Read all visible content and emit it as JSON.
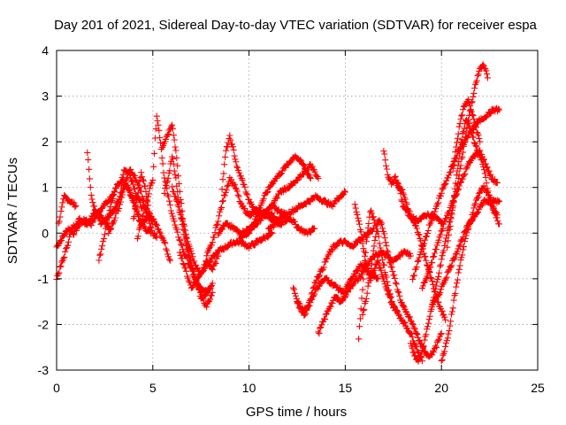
{
  "chart_data": {
    "type": "scatter",
    "title": "Day 201 of 2021, Sidereal Day-to-day VTEC variation (SDTVAR) for receiver espa",
    "xlabel": "GPS time / hours",
    "ylabel": "SDTVAR / TECUs",
    "xlim": [
      0,
      25
    ],
    "ylim": [
      -3,
      4
    ],
    "x_ticks": [
      "0",
      "5",
      "10",
      "15",
      "20",
      "25"
    ],
    "y_ticks": [
      "-3",
      "-2",
      "-1",
      "0",
      "1",
      "2",
      "3",
      "4"
    ],
    "x_tick_values": [
      0,
      5,
      10,
      15,
      20,
      25
    ],
    "y_tick_values": [
      -3,
      -2,
      -1,
      0,
      1,
      2,
      3,
      4
    ],
    "grid": true,
    "marker": "plus",
    "color": "#ff0000",
    "series": [
      {
        "x": [
          0.0,
          0.3,
          0.6,
          0.9,
          1.2,
          1.5,
          1.8,
          2.1,
          2.4,
          2.7,
          3.0
        ],
        "y": [
          -0.3,
          -0.1,
          0.1,
          0.0,
          0.2,
          0.3,
          0.2,
          0.4,
          0.6,
          0.7,
          0.9
        ]
      },
      {
        "x": [
          0.1,
          0.4,
          0.7,
          1.0
        ],
        "y": [
          0.2,
          0.8,
          0.7,
          0.6
        ]
      },
      {
        "x": [
          0.0,
          0.4,
          0.8,
          1.2,
          1.6,
          2.0,
          2.4,
          2.8
        ],
        "y": [
          -1.0,
          -0.5,
          0.1,
          0.3,
          0.2,
          0.5,
          0.3,
          0.1
        ]
      },
      {
        "x": [
          1.6,
          1.8,
          2.0,
          2.3,
          2.6,
          3.0,
          3.3,
          3.6,
          4.0,
          4.4,
          4.8,
          5.0
        ],
        "y": [
          1.8,
          0.8,
          0.5,
          0.2,
          0.3,
          0.5,
          0.8,
          1.1,
          0.7,
          0.2,
          0.4,
          0.3
        ]
      },
      {
        "x": [
          2.2,
          2.5,
          2.8,
          3.1,
          3.4,
          3.7,
          4.0,
          4.3,
          4.6,
          4.9
        ],
        "y": [
          -0.6,
          0.0,
          0.6,
          1.0,
          1.2,
          1.0,
          0.7,
          0.3,
          0.1,
          0.0
        ]
      },
      {
        "x": [
          2.7,
          3.0,
          3.3,
          3.5,
          3.8,
          4.1,
          4.4,
          4.7,
          5.0,
          5.3,
          5.6,
          5.9
        ],
        "y": [
          0.0,
          0.3,
          0.8,
          1.4,
          1.3,
          0.9,
          0.6,
          0.5,
          0.3,
          0.1,
          -0.2,
          -0.6
        ]
      },
      {
        "x": [
          3.2,
          3.5,
          3.8,
          4.1,
          4.4,
          4.7,
          5.0,
          5.2
        ],
        "y": [
          0.5,
          1.0,
          1.4,
          1.2,
          0.9,
          0.4,
          0.0,
          -0.1
        ]
      },
      {
        "x": [
          4.0,
          4.2,
          4.4,
          4.6,
          4.8,
          5.0
        ],
        "y": [
          0.3,
          0.8,
          1.3,
          1.0,
          0.5,
          0.2
        ]
      },
      {
        "x": [
          4.2,
          4.5,
          4.8,
          5.0,
          5.2,
          5.4,
          5.6,
          5.9,
          6.2,
          6.6,
          7.0,
          7.4,
          7.8,
          8.1
        ],
        "y": [
          -0.1,
          0.4,
          0.9,
          1.2,
          2.6,
          2.0,
          1.2,
          0.6,
          0.1,
          -0.4,
          -0.8,
          -1.2,
          -1.3,
          -1.1
        ]
      },
      {
        "x": [
          5.5,
          5.8,
          6.0,
          6.2,
          6.4,
          6.6,
          6.9,
          7.2,
          7.5,
          7.8,
          8.1
        ],
        "y": [
          1.9,
          2.2,
          2.4,
          1.8,
          0.9,
          0.2,
          -0.5,
          -1.0,
          -1.4,
          -1.6,
          -1.3
        ]
      },
      {
        "x": [
          5.6,
          5.8,
          6.0,
          6.2,
          6.4,
          6.7,
          7.0,
          7.3,
          7.6,
          8.0
        ],
        "y": [
          0.9,
          1.2,
          1.7,
          1.2,
          0.5,
          -0.2,
          -0.7,
          -1.1,
          -1.4,
          -1.2
        ]
      },
      {
        "x": [
          6.0,
          6.3,
          6.6,
          6.9,
          7.2,
          7.5,
          7.8,
          8.1,
          8.4
        ],
        "y": [
          1.0,
          0.6,
          0.2,
          -0.3,
          -0.7,
          -0.9,
          -0.6,
          -0.8,
          -0.5
        ]
      },
      {
        "x": [
          6.4,
          6.7,
          7.0,
          7.3,
          7.6,
          8.0,
          8.4,
          8.8,
          9.2,
          9.6,
          10.0,
          10.4,
          10.8,
          11.2
        ],
        "y": [
          -0.4,
          -0.8,
          -1.2,
          -1.0,
          -0.8,
          -0.6,
          -0.4,
          -0.3,
          -0.2,
          -0.2,
          -0.3,
          -0.2,
          -0.1,
          0.0
        ]
      },
      {
        "x": [
          7.8,
          8.1,
          8.4,
          8.7,
          9.0,
          9.3,
          9.6,
          10.0,
          10.4,
          10.8,
          11.2,
          11.6,
          12.0
        ],
        "y": [
          -0.5,
          -0.2,
          0.3,
          0.8,
          1.2,
          1.0,
          0.6,
          0.4,
          0.5,
          0.4,
          0.3,
          0.2,
          0.3
        ]
      },
      {
        "x": [
          8.6,
          8.8,
          9.0,
          9.2,
          9.4,
          9.7,
          10.0,
          10.3,
          10.6,
          10.9,
          11.2,
          11.5
        ],
        "y": [
          1.0,
          1.8,
          2.1,
          1.8,
          1.4,
          1.1,
          0.7,
          0.5,
          0.4,
          0.5,
          0.4,
          0.3
        ]
      },
      {
        "x": [
          8.4,
          8.8,
          9.2,
          9.6,
          10.0,
          10.4,
          10.8,
          11.2,
          11.6,
          12.0,
          12.4,
          12.8,
          13.2,
          13.6
        ],
        "y": [
          0.0,
          0.2,
          0.1,
          0.0,
          0.1,
          0.2,
          0.4,
          0.6,
          0.9,
          1.0,
          1.1,
          1.3,
          1.5,
          1.2
        ]
      },
      {
        "x": [
          9.5,
          9.9,
          10.3,
          10.7,
          11.1,
          11.5,
          11.9,
          12.3,
          12.7,
          13.1,
          13.5,
          13.9,
          14.3,
          14.7,
          15.0
        ],
        "y": [
          -0.1,
          0.0,
          0.2,
          0.4,
          0.6,
          0.5,
          0.4,
          0.5,
          0.6,
          0.7,
          0.8,
          0.7,
          0.6,
          0.8,
          0.9
        ]
      },
      {
        "x": [
          10.0,
          10.4,
          10.8,
          11.2,
          11.6,
          12.0,
          12.4,
          12.8,
          13.2
        ],
        "y": [
          0.0,
          0.4,
          0.8,
          1.1,
          1.3,
          1.5,
          1.7,
          1.5,
          1.2
        ]
      },
      {
        "x": [
          11.0,
          11.4,
          11.8,
          12.2,
          12.6,
          13.0,
          13.4
        ],
        "y": [
          0.1,
          0.2,
          0.4,
          0.3,
          0.1,
          0.0,
          0.1
        ]
      },
      {
        "x": [
          12.3,
          12.6,
          12.9,
          13.2,
          13.5,
          13.8,
          14.1,
          14.4,
          14.7,
          15.0,
          15.3,
          15.6,
          15.9,
          16.2,
          16.5
        ],
        "y": [
          -1.2,
          -1.6,
          -1.8,
          -1.4,
          -1.0,
          -0.8,
          -0.5,
          -0.3,
          -0.2,
          -0.2,
          -0.3,
          -0.2,
          -0.1,
          0.0,
          0.1
        ]
      },
      {
        "x": [
          12.5,
          12.8,
          13.1,
          13.4,
          13.7,
          14.0,
          14.3,
          14.6,
          14.9,
          15.2,
          15.5,
          15.8,
          16.1,
          16.4,
          16.7
        ],
        "y": [
          -1.5,
          -1.7,
          -1.6,
          -1.3,
          -1.1,
          -1.0,
          -1.1,
          -1.2,
          -1.3,
          -1.1,
          -0.9,
          -0.7,
          -0.8,
          -0.9,
          -1.0
        ]
      },
      {
        "x": [
          13.6,
          13.9,
          14.2,
          14.5,
          14.8,
          15.1,
          15.4,
          15.7,
          16.0,
          16.3,
          16.6,
          16.9,
          17.2,
          17.5,
          17.8,
          18.1,
          18.4
        ],
        "y": [
          -2.2,
          -1.9,
          -1.6,
          -1.4,
          -1.5,
          -1.3,
          -1.1,
          -1.0,
          -0.8,
          -0.6,
          -0.5,
          -0.4,
          -0.5,
          -0.6,
          -0.5,
          -0.4,
          -0.5
        ]
      },
      {
        "x": [
          15.5,
          15.7,
          15.9,
          16.1,
          16.3,
          16.5,
          16.7,
          16.9,
          17.1,
          17.3,
          17.5,
          17.8,
          18.1,
          18.4,
          18.7,
          19.0
        ],
        "y": [
          0.6,
          0.3,
          -0.2,
          -0.7,
          -1.0,
          -0.8,
          -0.6,
          -0.9,
          -1.2,
          -1.4,
          -1.6,
          -1.8,
          -2.0,
          -2.2,
          -2.5,
          -2.8
        ]
      },
      {
        "x": [
          15.7,
          15.9,
          16.1,
          16.3,
          16.5,
          16.7,
          16.9,
          17.1,
          17.3,
          17.5,
          17.7
        ],
        "y": [
          -2.3,
          -1.2,
          -0.2,
          0.5,
          0.3,
          0.0,
          -0.5,
          -0.9,
          -1.3,
          -1.6,
          -1.7
        ]
      },
      {
        "x": [
          15.9,
          16.1,
          16.3,
          16.5,
          16.7,
          16.9,
          17.1,
          17.3,
          17.5,
          17.7,
          17.9,
          18.1,
          18.4,
          18.7,
          19.0,
          19.3,
          19.6,
          20.0
        ],
        "y": [
          -1.8,
          -1.4,
          -0.9,
          -0.3,
          0.3,
          0.2,
          -0.2,
          -0.6,
          -0.9,
          -1.2,
          -1.5,
          -1.7,
          -1.9,
          -2.2,
          -2.5,
          -2.7,
          -2.6,
          -2.2
        ]
      },
      {
        "x": [
          17.0,
          17.2,
          17.4,
          17.6,
          17.8,
          18.0,
          18.3,
          18.6,
          18.9,
          19.2,
          19.5,
          19.8,
          20.1
        ],
        "y": [
          1.8,
          1.3,
          1.1,
          1.2,
          1.0,
          0.6,
          0.4,
          0.3,
          0.3,
          0.4,
          0.4,
          0.3,
          0.2
        ]
      },
      {
        "x": [
          17.6,
          17.8,
          18.0,
          18.2,
          18.4,
          18.6,
          18.8,
          19.0,
          19.2,
          19.4,
          19.6,
          19.8,
          20.0,
          20.2
        ],
        "y": [
          1.2,
          1.0,
          0.9,
          0.6,
          0.4,
          0.2,
          0.0,
          -0.3,
          -0.6,
          -0.9,
          -1.2,
          -1.5,
          -1.7,
          -1.9
        ]
      },
      {
        "x": [
          18.4,
          18.6,
          18.8,
          19.0,
          19.2,
          19.4,
          19.6,
          19.8,
          20.0,
          20.2,
          20.4,
          20.6,
          20.8,
          21.0,
          21.2,
          21.4,
          21.6,
          21.8,
          22.0,
          22.2,
          22.4
        ],
        "y": [
          -2.4,
          -2.7,
          -2.8,
          -2.6,
          -2.2,
          -1.8,
          -1.4,
          -1.0,
          -0.6,
          -0.2,
          0.2,
          0.6,
          1.0,
          1.5,
          2.0,
          2.5,
          2.9,
          3.3,
          3.6,
          3.7,
          3.4
        ]
      },
      {
        "x": [
          18.5,
          18.8,
          19.1,
          19.4,
          19.7,
          20.0,
          20.3,
          20.6,
          20.9,
          21.2,
          21.5,
          21.8,
          22.1,
          22.4,
          22.7,
          23.0
        ],
        "y": [
          -1.0,
          -0.6,
          -0.2,
          0.2,
          0.5,
          0.9,
          1.2,
          1.5,
          1.8,
          2.0,
          2.2,
          2.4,
          2.5,
          2.6,
          2.7,
          2.7
        ]
      },
      {
        "x": [
          19.0,
          19.3,
          19.6,
          19.9,
          20.2,
          20.5,
          20.8,
          21.1,
          21.4,
          21.7,
          22.0,
          22.3,
          22.6,
          22.9
        ],
        "y": [
          -1.2,
          -0.9,
          -0.5,
          -0.1,
          0.3,
          0.6,
          0.9,
          1.2,
          1.5,
          1.7,
          1.8,
          1.5,
          1.2,
          1.1
        ]
      },
      {
        "x": [
          19.5,
          19.8,
          20.1,
          20.4,
          20.7,
          21.0,
          21.3,
          21.6,
          21.9,
          22.2,
          22.5,
          22.8,
          23.0
        ],
        "y": [
          -1.6,
          -1.4,
          -1.1,
          -0.8,
          -0.5,
          -0.2,
          0.1,
          0.3,
          0.5,
          0.7,
          0.7,
          0.7,
          0.7
        ]
      },
      {
        "x": [
          20.0,
          20.2,
          20.4,
          20.6,
          20.8,
          21.0,
          21.2,
          21.4,
          21.6,
          21.8,
          22.0,
          22.2,
          22.4,
          22.6,
          22.8,
          23.0
        ],
        "y": [
          -2.8,
          -2.5,
          -2.1,
          -1.6,
          -1.1,
          -0.6,
          -0.2,
          0.1,
          0.4,
          0.7,
          0.9,
          1.0,
          0.9,
          0.7,
          0.4,
          0.2
        ]
      },
      {
        "x": [
          20.3,
          20.5,
          20.7,
          20.9,
          21.1,
          21.3,
          21.5,
          21.7,
          21.9,
          22.1,
          22.3,
          22.5,
          22.7,
          22.9
        ],
        "y": [
          -0.3,
          0.3,
          1.0,
          1.6,
          2.2,
          2.5,
          2.3,
          2.0,
          1.8,
          1.6,
          1.2,
          0.7,
          0.5,
          0.4
        ]
      },
      {
        "x": [
          20.6,
          20.8,
          21.0,
          21.2,
          21.4,
          21.6,
          21.8,
          22.0
        ],
        "y": [
          1.4,
          2.0,
          2.5,
          2.8,
          2.9,
          2.6,
          2.3,
          2.0
        ]
      }
    ]
  }
}
